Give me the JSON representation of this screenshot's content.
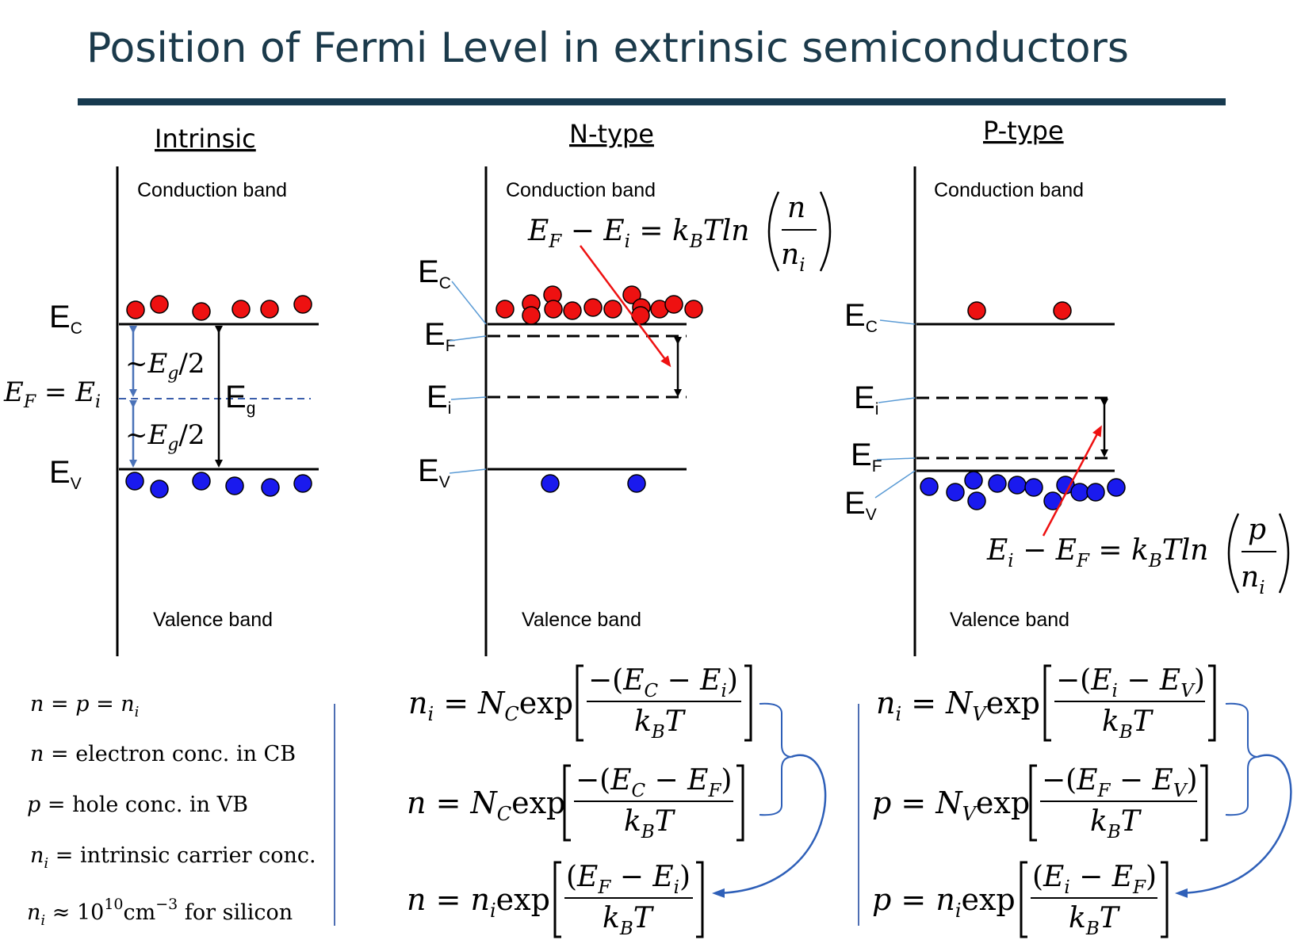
{
  "title": "Position of Fermi Level in extrinsic semiconductors",
  "panels": {
    "intrinsic": {
      "heading": "Intrinsic",
      "cb": "Conduction band",
      "vb": "Valence band",
      "ec": "E",
      "ec_sub": "C",
      "ev": "E",
      "ev_sub": "V",
      "eg": "E",
      "eg_sub": "g",
      "ef_eq_ei": "E_F = E_i",
      "half_gap_upper": "~E_g/2",
      "half_gap_lower": "~E_g/2"
    },
    "ntype": {
      "heading": "N-type",
      "cb": "Conduction band",
      "vb": "Valence band",
      "ec_sub": "C",
      "ef_sub": "F",
      "ei_sub": "i",
      "ev_sub": "V",
      "relation": "E_F − E_i = k_B T ln(n/n_i)"
    },
    "ptype": {
      "heading": "P-type",
      "cb": "Conduction band",
      "vb": "Valence band",
      "ec_sub": "C",
      "ei_sub": "i",
      "ef_sub": "F",
      "ev_sub": "V",
      "relation": "E_i − E_F = k_B T ln(p/n_i)"
    }
  },
  "definitions": [
    "n = p = n_i",
    "n = electron conc. in CB",
    "p = hole conc. in VB",
    "n_i = intrinsic carrier conc.",
    "n_i ≈ 10^10 cm^-3 for silicon"
  ],
  "definition_text": {
    "d2": "electron conc. in CB",
    "d3": "hole conc. in VB",
    "d4": "intrinsic carrier conc.",
    "d5_unit": "cm",
    "d5_tail": "for silicon"
  },
  "equations_n": [
    "n_i = N_C exp[−(E_C − E_i)/(k_B T)]",
    "n = N_C exp[−(E_C − E_F)/(k_B T)]",
    "n = n_i exp[(E_F − E_i)/(k_B T)]"
  ],
  "equations_p": [
    "n_i = N_V exp[−(E_i − E_V)/(k_B T)]",
    "p = N_V exp[−(E_F − E_V)/(k_B T)]",
    "p = n_i exp[(E_i − E_F)/(k_B T)]"
  ],
  "colors": {
    "title": "#1b3a4b",
    "title_rule": "#173a4f",
    "electron": "#ee1111",
    "hole": "#1a1aee",
    "leader": "#5b9bd5",
    "dashed_ef": "#3b5eab",
    "gap_arrow": "#4a72b8",
    "red_arrow": "#ee1111",
    "curve": "#2e5fb8"
  }
}
